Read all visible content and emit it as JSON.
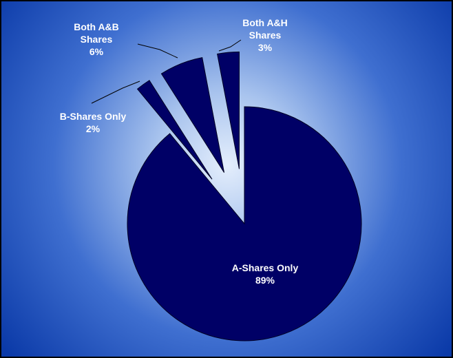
{
  "chart_data": {
    "type": "pie",
    "categories": [
      "A-Shares Only",
      "B-Shares Only",
      "Both A&B Shares",
      "Both A&H Shares"
    ],
    "values": [
      89,
      2,
      6,
      3
    ],
    "value_labels": [
      "89%",
      "2%",
      "6%",
      "3%"
    ],
    "color": "#000066"
  }
}
